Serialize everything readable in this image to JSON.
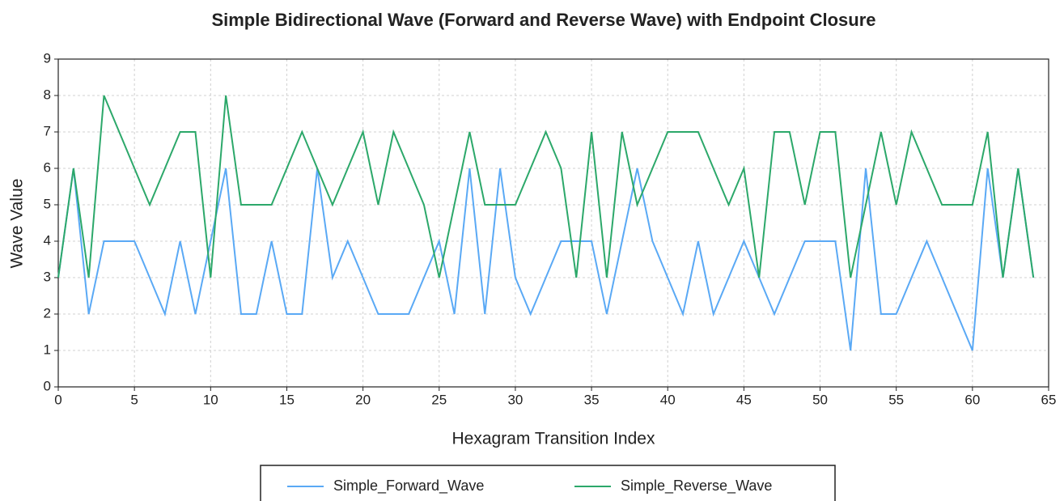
{
  "chart_data": {
    "type": "line",
    "title": "Simple Bidirectional Wave (Forward and Reverse Wave) with Endpoint Closure",
    "x_label": "Hexagram Transition Index",
    "y_label": "Wave Value",
    "x": [
      0,
      1,
      2,
      3,
      4,
      5,
      6,
      7,
      8,
      9,
      10,
      11,
      12,
      13,
      14,
      15,
      16,
      17,
      18,
      19,
      20,
      21,
      22,
      23,
      24,
      25,
      26,
      27,
      28,
      29,
      30,
      31,
      32,
      33,
      34,
      35,
      36,
      37,
      38,
      39,
      40,
      41,
      42,
      43,
      44,
      45,
      46,
      47,
      48,
      49,
      50,
      51,
      52,
      53,
      54,
      55,
      56,
      57,
      58,
      59,
      60,
      61,
      62,
      63,
      64
    ],
    "series": [
      {
        "name": "Simple_Forward_Wave",
        "color": "#5aa9f5",
        "values": [
          3,
          6,
          2,
          4,
          4,
          4,
          3,
          2,
          4,
          2,
          4,
          6,
          2,
          2,
          4,
          2,
          2,
          6,
          3,
          4,
          3,
          2,
          2,
          2,
          3,
          4,
          2,
          6,
          2,
          6,
          3,
          2,
          3,
          4,
          4,
          4,
          2,
          4,
          6,
          4,
          3,
          2,
          4,
          2,
          3,
          4,
          3,
          2,
          3,
          4,
          4,
          4,
          1,
          6,
          2,
          2,
          3,
          4,
          3,
          2,
          1,
          6,
          3,
          6,
          3
        ]
      },
      {
        "name": "Simple_Reverse_Wave",
        "color": "#2ca86a",
        "values": [
          3,
          6,
          3,
          8,
          7,
          6,
          5,
          6,
          7,
          7,
          3,
          8,
          5,
          5,
          5,
          6,
          7,
          6,
          5,
          6,
          7,
          5,
          7,
          6,
          5,
          3,
          5,
          7,
          5,
          5,
          5,
          6,
          7,
          6,
          3,
          7,
          3,
          7,
          5,
          6,
          7,
          7,
          7,
          6,
          5,
          6,
          3,
          7,
          7,
          5,
          7,
          7,
          3,
          5,
          7,
          5,
          7,
          6,
          5,
          5,
          5,
          7,
          3,
          6,
          3
        ]
      }
    ],
    "xlim": [
      0,
      65
    ],
    "xticks": [
      0,
      5,
      10,
      15,
      20,
      25,
      30,
      35,
      40,
      45,
      50,
      55,
      60,
      65
    ],
    "ylim": [
      0,
      9
    ],
    "yticks": [
      0,
      1,
      2,
      3,
      4,
      5,
      6,
      7,
      8,
      9
    ],
    "grid": true,
    "legend": "bottom"
  }
}
